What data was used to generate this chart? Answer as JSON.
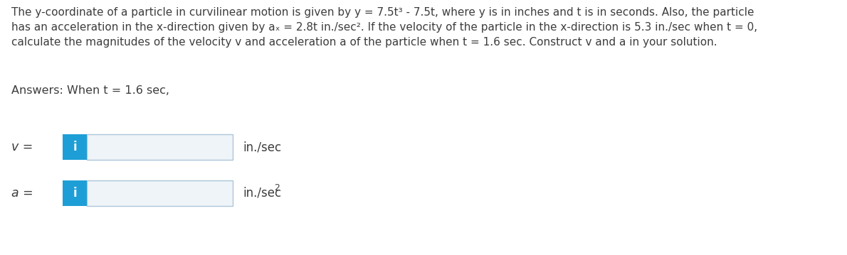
{
  "background_color": "#ffffff",
  "text_color": "#3d3d3d",
  "line1": "The y-coordinate of a particle in curvilinear motion is given by y = 7.5t³ - 7.5t, where y is in inches and t is in seconds. Also, the particle",
  "line2": "has an acceleration in the x-direction given by aₓ = 2.8t in./sec². If the velocity of the particle in the x-direction is 5.3 in./sec when t = 0,",
  "line3": "calculate the magnitudes of the velocity v and acceleration a of the particle when t = 1.6 sec. Construct v and a in your solution.",
  "answers_label": "Answers: When t = 1.6 sec,",
  "v_label": "v =",
  "a_label": "a =",
  "v_unit": "in./sec",
  "a_unit_base": "in./sec",
  "a_unit_exp": "2",
  "box_blue_color": "#1e9ed6",
  "box_border_color": "#adc6d8",
  "box_fill_color": "#eef4f8",
  "info_text": "i",
  "info_text_color": "#ffffff",
  "font_size_para": 11.0,
  "font_size_label": 12.5,
  "font_size_answers": 11.5,
  "font_size_units": 12.0,
  "font_size_info": 12.0
}
